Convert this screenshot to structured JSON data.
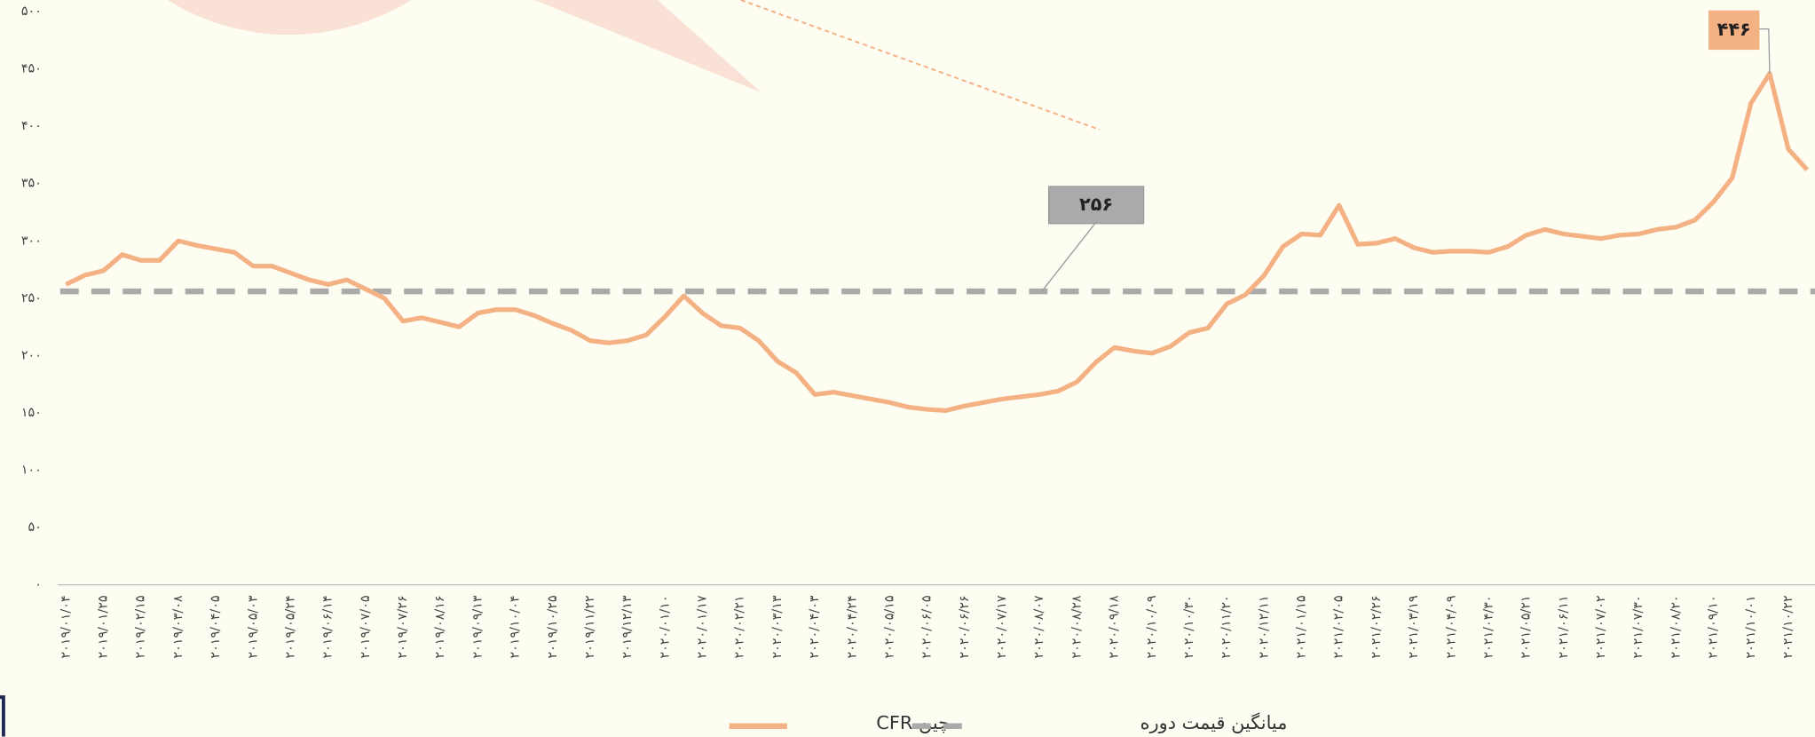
{
  "chart_data": {
    "type": "line",
    "categories": [
      "۲۰۱۹/۰۱/۰۴",
      null,
      "۲۰۱۹/۰۱/۲۵",
      null,
      "۲۰۱۹/۰۲/۱۵",
      null,
      "۲۰۱۹/۰۳/۰۸",
      null,
      "۲۰۱۹/۰۴/۰۵",
      null,
      "۲۰۱۹/۰۵/۰۳",
      null,
      "۲۰۱۹/۰۵/۲۴",
      null,
      "۲۰۱۹/۰۶/۱۴",
      null,
      "۲۰۱۹/۰۷/۰۵",
      null,
      "۲۰۱۹/۰۷/۲۶",
      null,
      "۲۰۱۹/۰۸/۱۶",
      null,
      "۲۰۱۹/۰۹/۱۳",
      null,
      "۲۰۱۹/۱۰/۰۴",
      null,
      "۲۰۱۹/۱۰/۲۵",
      null,
      "۲۰۱۹/۱۱/۲۲",
      null,
      "۲۰۱۹/۱۲/۱۳",
      null,
      "۲۰۲۰/۰۱/۱۰",
      null,
      "۲۰۲۰/۰۱/۱۷",
      null,
      "۲۰۲۰/۰۲/۲۱",
      null,
      "۲۰۲۰/۰۳/۱۳",
      null,
      "۲۰۲۰/۰۴/۰۳",
      null,
      "۲۰۲۰/۰۴/۲۴",
      null,
      "۲۰۲۰/۰۵/۱۵",
      null,
      "۲۰۲۰/۰۶/۰۵",
      null,
      "۲۰۲۰/۰۶/۲۶",
      null,
      "۲۰۲۰/۰۷/۱۷",
      null,
      "۲۰۲۰/۰۸/۰۷",
      null,
      "۲۰۲۰/۰۸/۲۸",
      null,
      "۲۰۲۰/۰۹/۱۸",
      null,
      "۲۰۲۰/۱۰/۰۹",
      null,
      "۲۰۲۰/۱۰/۳۰",
      null,
      "۲۰۲۰/۱۱/۲۰",
      null,
      "۲۰۲۰/۱۲/۱۱",
      null,
      "۲۰۲۱/۰۱/۱۵",
      null,
      "۲۰۲۱/۰۲/۰۵",
      null,
      "۲۰۲۱/۰۲/۲۶",
      null,
      "۲۰۲۱/۰۳/۱۹",
      null,
      "۲۰۲۱/۰۴/۰۹",
      null,
      "۲۰۲۱/۰۴/۳۰",
      null,
      "۲۰۲۱/۰۵/۲۱",
      null,
      "۲۰۲۱/۰۶/۱۱",
      null,
      "۲۰۲۱/۰۷/۰۲",
      null,
      "۲۰۲۱/۰۷/۳۰",
      null,
      "۲۰۲۱/۰۸/۲۰",
      null,
      "۲۰۲۱/۰۹/۱۰",
      null,
      "۲۰۲۱/۱۰/۰۱",
      null,
      "۲۰۲۱/۱۰/۲۲",
      null
    ],
    "series": [
      {
        "name": "چین CFR",
        "color": "#f4b183",
        "values": [
          262,
          270,
          274,
          288,
          283,
          283,
          300,
          296,
          293,
          290,
          278,
          278,
          272,
          266,
          262,
          266,
          258,
          250,
          230,
          233,
          229,
          225,
          237,
          240,
          240,
          235,
          228,
          222,
          213,
          211,
          213,
          218,
          234,
          252,
          237,
          226,
          224,
          213,
          195,
          185,
          166,
          168,
          165,
          162,
          159,
          155,
          153,
          152,
          156,
          159,
          162,
          164,
          166,
          169,
          177,
          194,
          207,
          204,
          202,
          208,
          220,
          224,
          245,
          253,
          270,
          295,
          306,
          305,
          331,
          297,
          298,
          302,
          294,
          290,
          291,
          291,
          290,
          295,
          305,
          310,
          306,
          304,
          302,
          305,
          306,
          310,
          312,
          318,
          334,
          355,
          420,
          446,
          380,
          362
        ]
      }
    ],
    "reference_line": {
      "name": "میانگین قیمت دوره",
      "value": 256,
      "label": "۲۵۶",
      "color": "#aaaaaa"
    },
    "annotations": [
      {
        "label": "۴۴۶",
        "value": 446
      }
    ],
    "ylim": [
      0,
      500
    ],
    "yticks": [
      {
        "value": 0,
        "label": "۰"
      },
      {
        "value": 50,
        "label": "۵۰"
      },
      {
        "value": 100,
        "label": "۱۰۰"
      },
      {
        "value": 150,
        "label": "۱۵۰"
      },
      {
        "value": 200,
        "label": "۲۰۰"
      },
      {
        "value": 250,
        "label": "۲۵۰"
      },
      {
        "value": 300,
        "label": "۳۰۰"
      },
      {
        "value": 350,
        "label": "۳۵۰"
      },
      {
        "value": 400,
        "label": "۴۰۰"
      },
      {
        "value": 450,
        "label": "۴۵۰"
      },
      {
        "value": 500,
        "label": "۵۰۰"
      }
    ],
    "grid": false
  }
}
